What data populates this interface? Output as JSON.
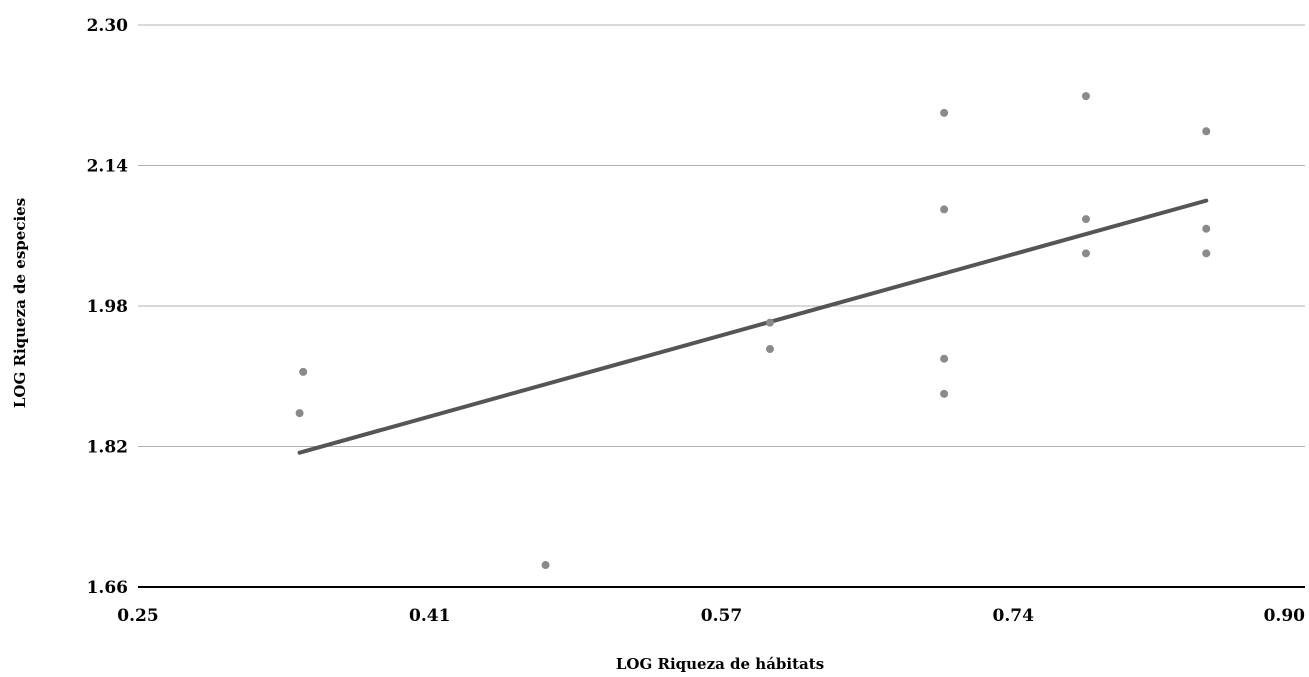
{
  "chart_data": {
    "type": "scatter",
    "xlabel": "LOG Riqueza de hábitats",
    "ylabel": "LOG Riqueza de especies",
    "xlim": [
      0.25,
      0.9
    ],
    "ylim": [
      1.66,
      2.3
    ],
    "x_ticks": [
      "0.25",
      "0.41",
      "0.57",
      "0.74",
      "0.90"
    ],
    "y_ticks": [
      "1.66",
      "1.82",
      "1.98",
      "2.14",
      "2.30"
    ],
    "grid": "horizontal",
    "points": [
      {
        "x": 0.342,
        "y": 1.905
      },
      {
        "x": 0.34,
        "y": 1.858
      },
      {
        "x": 0.477,
        "y": 1.685
      },
      {
        "x": 0.602,
        "y": 1.961
      },
      {
        "x": 0.602,
        "y": 1.931
      },
      {
        "x": 0.699,
        "y": 2.2
      },
      {
        "x": 0.699,
        "y": 2.09
      },
      {
        "x": 0.699,
        "y": 1.92
      },
      {
        "x": 0.699,
        "y": 1.88
      },
      {
        "x": 0.778,
        "y": 2.219
      },
      {
        "x": 0.778,
        "y": 2.079
      },
      {
        "x": 0.778,
        "y": 2.04
      },
      {
        "x": 0.845,
        "y": 2.179
      },
      {
        "x": 0.845,
        "y": 2.068
      },
      {
        "x": 0.845,
        "y": 2.04
      }
    ],
    "trendline": {
      "x": [
        0.34,
        0.845
      ],
      "y": [
        1.813,
        2.1
      ]
    },
    "colors": {
      "points": "#8a8a8a",
      "trendline": "#555555",
      "grid": "#b3b3b3"
    }
  }
}
